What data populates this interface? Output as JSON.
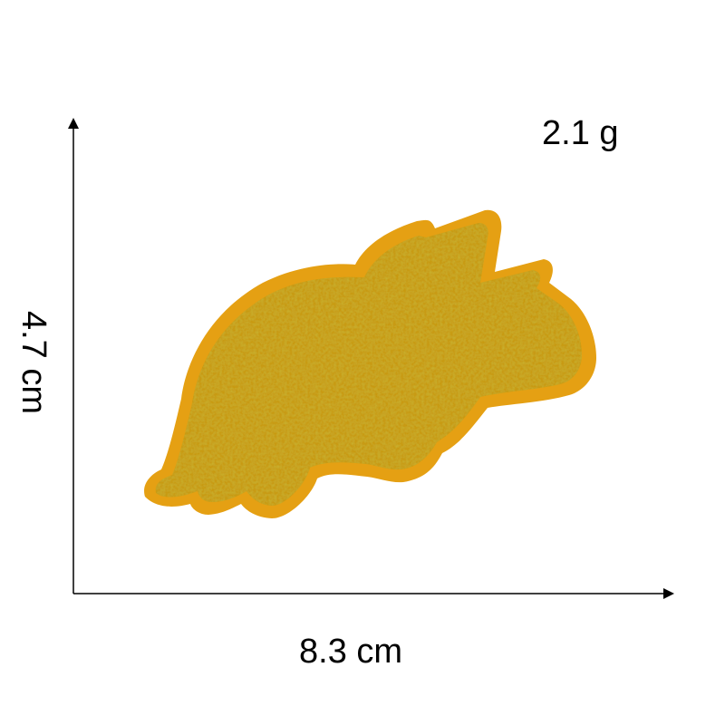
{
  "weight": "2.1 g",
  "height": "4.7 cm",
  "width": "8.3 cm",
  "colors": {
    "felt": "#E5A013",
    "chenille": "#C89A16",
    "chenille_dark": "#A77E0B",
    "axis": "#000000"
  },
  "icons": {
    "patch": "triceratops-chenille-patch-icon"
  }
}
